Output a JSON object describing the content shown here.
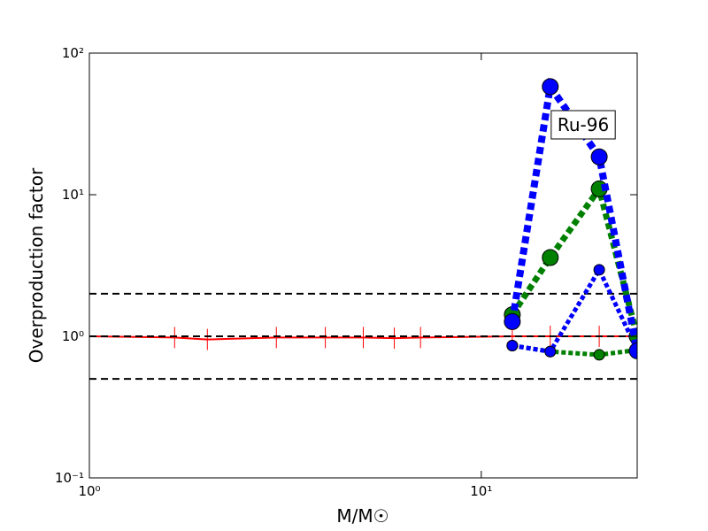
{
  "chart_data": {
    "type": "line",
    "xlabel": "M/M☉",
    "ylabel": "Overproduction factor",
    "annotation": "Ru-96",
    "xscale": "log",
    "yscale": "log",
    "xlim": [
      1,
      25
    ],
    "ylim": [
      0.1,
      100
    ],
    "xticks": [
      {
        "value": 1,
        "label": "10⁰"
      },
      {
        "value": 10,
        "label": "10¹"
      }
    ],
    "yticks": [
      {
        "value": 0.1,
        "label": "10⁻¹"
      },
      {
        "value": 1,
        "label": "10⁰"
      },
      {
        "value": 10,
        "label": "10¹"
      },
      {
        "value": 100,
        "label": "10²"
      }
    ],
    "hlines": {
      "values": [
        2,
        1,
        0.5
      ],
      "color": "#000000",
      "line_style": "dashed"
    },
    "series": [
      {
        "color": "#ff0000",
        "line_style": "solid",
        "line_width": 2,
        "marker": "|",
        "marker_size": 12,
        "x": [
          1,
          1.65,
          2,
          3,
          4,
          5,
          6,
          7,
          12,
          15,
          20,
          25
        ],
        "values": [
          1.0,
          0.98,
          0.95,
          0.98,
          0.98,
          0.98,
          0.97,
          0.98,
          1.0,
          1.0,
          1.0,
          1.0
        ]
      },
      {
        "color": "#008000",
        "line_style": "dotted",
        "line_width": 5,
        "marker": "o",
        "marker_size": 6,
        "x": [
          12,
          15,
          20,
          25
        ],
        "values": [
          0.86,
          0.78,
          0.74,
          0.8
        ]
      },
      {
        "color": "#0000ff",
        "line_style": "dotted",
        "line_width": 5,
        "marker": "o",
        "marker_size": 6,
        "x": [
          12,
          15,
          20,
          25
        ],
        "values": [
          0.86,
          0.78,
          2.95,
          0.8
        ]
      },
      {
        "color": "#008000",
        "line_style": "dotted",
        "line_width": 7,
        "marker": "o",
        "marker_size": 9,
        "x": [
          12,
          15,
          20,
          25
        ],
        "values": [
          1.42,
          3.6,
          11,
          1.0
        ]
      },
      {
        "color": "#0000ff",
        "line_style": "dotted",
        "line_width": 8,
        "marker": "o",
        "marker_size": 9,
        "x": [
          12,
          15,
          20,
          25
        ],
        "values": [
          1.27,
          58,
          18.5,
          0.79
        ]
      }
    ]
  }
}
